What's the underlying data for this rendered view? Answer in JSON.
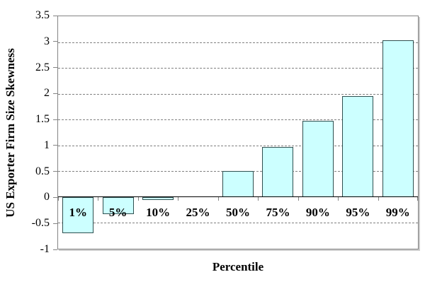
{
  "chart_data": {
    "type": "bar",
    "categories": [
      "1%",
      "5%",
      "10%",
      "25%",
      "50%",
      "75%",
      "90%",
      "95%",
      "99%"
    ],
    "values": [
      -0.7,
      -0.33,
      -0.05,
      0.0,
      0.5,
      0.97,
      1.48,
      1.95,
      3.04
    ],
    "xlabel": "Percentile",
    "ylabel": "US Exporter Firm Size Skewness",
    "ylim": [
      -1,
      3.5
    ],
    "yticks": [
      3.5,
      3,
      2.5,
      2,
      1.5,
      1,
      0.5,
      0,
      -0.5,
      -1
    ],
    "grid": "horizontal-dashed",
    "legend": "none",
    "colors": {
      "bar_fill": "#CCFFFF",
      "bar_border": "#2F4F4F",
      "gridline": "#808080",
      "axis": "#848484",
      "zero_line": "#000000",
      "background": "#FFFFFF",
      "text": "#000000"
    }
  }
}
